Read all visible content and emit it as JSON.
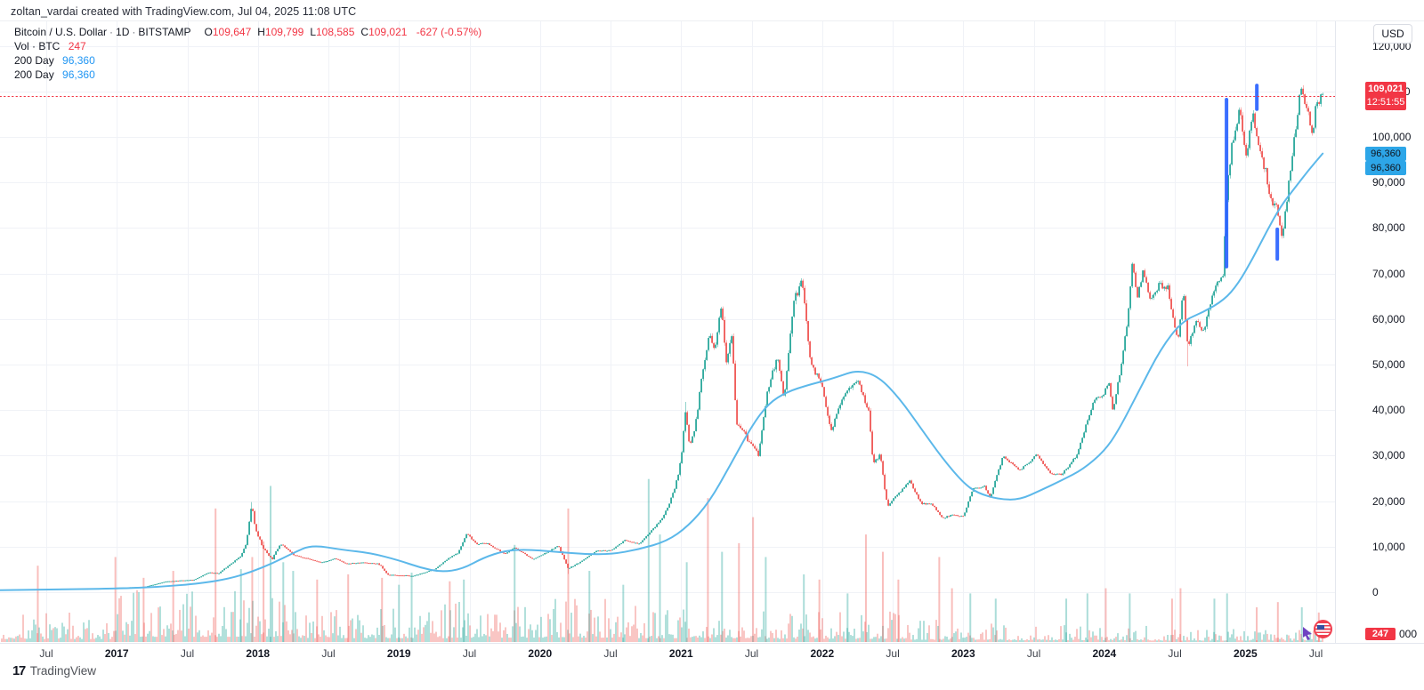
{
  "attribution": "zoltan_vardai created with TradingView.com, Jul 04, 2025 11:08 UTC",
  "legend": {
    "symbol": "Bitcoin / U.S. Dollar",
    "sep": "·",
    "interval": "1D",
    "exchange": "BITSTAMP",
    "o_label": "O",
    "o_value": "109,647",
    "h_label": "H",
    "h_value": "109,799",
    "l_label": "L",
    "l_value": "108,585",
    "c_label": "C",
    "c_value": "109,021",
    "change": "-627 (-0.57%)",
    "vol_label": "Vol · BTC",
    "vol_value": "247",
    "ma_rows": [
      {
        "label": "200 Day",
        "value": "96,360"
      },
      {
        "label": "200 Day",
        "value": "96,360"
      }
    ]
  },
  "price_axis": {
    "currency": "USD",
    "labels": [
      {
        "p": 120000,
        "text": "120,000"
      },
      {
        "p": 110000,
        "text": "110,000"
      },
      {
        "p": 100000,
        "text": "100,000"
      },
      {
        "p": 90000,
        "text": "90,000"
      },
      {
        "p": 80000,
        "text": "80,000"
      },
      {
        "p": 70000,
        "text": "70,000"
      },
      {
        "p": 60000,
        "text": "60,000"
      },
      {
        "p": 50000,
        "text": "50,000"
      },
      {
        "p": 40000,
        "text": "40,000"
      },
      {
        "p": 30000,
        "text": "30,000"
      },
      {
        "p": 20000,
        "text": "20,000"
      },
      {
        "p": 10000,
        "text": "10,000"
      },
      {
        "p": 0,
        "text": "0"
      }
    ],
    "last_price_badge": {
      "text": "109,021",
      "countdown": "12:51:55"
    },
    "ma_badges": [
      {
        "value": "96,360"
      },
      {
        "value": "96,360"
      }
    ],
    "volume_badge": {
      "text": "247",
      "suffix": "000"
    }
  },
  "time_axis": {
    "labels": [
      {
        "t": 2016.5,
        "text": "Jul",
        "major": false
      },
      {
        "t": 2017.0,
        "text": "2017",
        "major": true
      },
      {
        "t": 2017.5,
        "text": "Jul",
        "major": false
      },
      {
        "t": 2018.0,
        "text": "2018",
        "major": true
      },
      {
        "t": 2018.5,
        "text": "Jul",
        "major": false
      },
      {
        "t": 2019.0,
        "text": "2019",
        "major": true
      },
      {
        "t": 2019.5,
        "text": "Jul",
        "major": false
      },
      {
        "t": 2020.0,
        "text": "2020",
        "major": true
      },
      {
        "t": 2020.5,
        "text": "Jul",
        "major": false
      },
      {
        "t": 2021.0,
        "text": "2021",
        "major": true
      },
      {
        "t": 2021.5,
        "text": "Jul",
        "major": false
      },
      {
        "t": 2022.0,
        "text": "2022",
        "major": true
      },
      {
        "t": 2022.5,
        "text": "Jul",
        "major": false
      },
      {
        "t": 2023.0,
        "text": "2023",
        "major": true
      },
      {
        "t": 2023.5,
        "text": "Jul",
        "major": false
      },
      {
        "t": 2024.0,
        "text": "2024",
        "major": true
      },
      {
        "t": 2024.5,
        "text": "Jul",
        "major": false
      },
      {
        "t": 2025.0,
        "text": "2025",
        "major": true
      },
      {
        "t": 2025.5,
        "text": "Jul",
        "major": false
      }
    ]
  },
  "footer": {
    "logo_glyph": "17",
    "logo_text": "TradingView"
  },
  "colors": {
    "up": "#26a69a",
    "down": "#ef5350",
    "up_wick": "rgba(38,166,154,0.5)",
    "down_wick": "rgba(239,83,80,0.42)",
    "vol_up": "rgba(38,166,154,0.5)",
    "vol_down": "rgba(239,83,80,0.48)",
    "ma_line": "#5cb8ea",
    "accent_red": "#f23645",
    "badge_blue": "#2da6e8",
    "annotation_blue": "#2962ff",
    "grid": "#f0f2f7",
    "axis_text": "#131722"
  },
  "chart_data": {
    "type": "candlestick",
    "title": "Bitcoin / U.S. Dollar",
    "exchange": "BITSTAMP",
    "interval": "1D",
    "ohlc": {
      "open": 109647,
      "high": 109799,
      "low": 108585,
      "close": 109021
    },
    "change": -627,
    "change_pct": -0.57,
    "last_price": 109021,
    "ma200_value": 96360,
    "grid": true,
    "xlim": [
      2016.172,
      2025.635
    ],
    "ylim": [
      -11133,
      130078
    ],
    "series_end_t": 2025.548,
    "price_trend": [
      [
        2016.17,
        500
      ],
      [
        2016.5,
        660
      ],
      [
        2016.75,
        720
      ],
      [
        2017.0,
        990
      ],
      [
        2017.2,
        1190
      ],
      [
        2017.35,
        2350
      ],
      [
        2017.45,
        2550
      ],
      [
        2017.55,
        2720
      ],
      [
        2017.65,
        4350
      ],
      [
        2017.72,
        4100
      ],
      [
        2017.8,
        6100
      ],
      [
        2017.88,
        7900
      ],
      [
        2017.92,
        11000
      ],
      [
        2017.955,
        19500
      ],
      [
        2017.98,
        14300
      ],
      [
        2018.03,
        10000
      ],
      [
        2018.1,
        7200
      ],
      [
        2018.16,
        10800
      ],
      [
        2018.25,
        8200
      ],
      [
        2018.35,
        7400
      ],
      [
        2018.45,
        6500
      ],
      [
        2018.55,
        7400
      ],
      [
        2018.62,
        6300
      ],
      [
        2018.75,
        6500
      ],
      [
        2018.85,
        6300
      ],
      [
        2018.875,
        5600
      ],
      [
        2018.92,
        3800
      ],
      [
        2019.0,
        3750
      ],
      [
        2019.1,
        3550
      ],
      [
        2019.25,
        5000
      ],
      [
        2019.35,
        7400
      ],
      [
        2019.42,
        8700
      ],
      [
        2019.48,
        12900
      ],
      [
        2019.55,
        10600
      ],
      [
        2019.62,
        10800
      ],
      [
        2019.75,
        8400
      ],
      [
        2019.82,
        9800
      ],
      [
        2019.95,
        7200
      ],
      [
        2020.05,
        8800
      ],
      [
        2020.13,
        10200
      ],
      [
        2020.2,
        5200
      ],
      [
        2020.3,
        6900
      ],
      [
        2020.4,
        9100
      ],
      [
        2020.5,
        9150
      ],
      [
        2020.6,
        11400
      ],
      [
        2020.7,
        10600
      ],
      [
        2020.78,
        13200
      ],
      [
        2020.85,
        15600
      ],
      [
        2020.9,
        18300
      ],
      [
        2020.96,
        23400
      ],
      [
        2021.0,
        29200
      ],
      [
        2021.03,
        39500
      ],
      [
        2021.06,
        32500
      ],
      [
        2021.1,
        36500
      ],
      [
        2021.15,
        48000
      ],
      [
        2021.2,
        56500
      ],
      [
        2021.24,
        52500
      ],
      [
        2021.285,
        64000
      ],
      [
        2021.32,
        51000
      ],
      [
        2021.36,
        57500
      ],
      [
        2021.39,
        37500
      ],
      [
        2021.43,
        36000
      ],
      [
        2021.47,
        33500
      ],
      [
        2021.51,
        32000
      ],
      [
        2021.55,
        30200
      ],
      [
        2021.62,
        45500
      ],
      [
        2021.68,
        51500
      ],
      [
        2021.73,
        42500
      ],
      [
        2021.8,
        64500
      ],
      [
        2021.86,
        68000
      ],
      [
        2021.92,
        49500
      ],
      [
        2021.98,
        47500
      ],
      [
        2022.06,
        35500
      ],
      [
        2022.15,
        43000
      ],
      [
        2022.24,
        47000
      ],
      [
        2022.33,
        39500
      ],
      [
        2022.36,
        28500
      ],
      [
        2022.41,
        30200
      ],
      [
        2022.46,
        19000
      ],
      [
        2022.54,
        21800
      ],
      [
        2022.62,
        24300
      ],
      [
        2022.7,
        19600
      ],
      [
        2022.78,
        19300
      ],
      [
        2022.85,
        16200
      ],
      [
        2022.92,
        17000
      ],
      [
        2023.0,
        16700
      ],
      [
        2023.07,
        22800
      ],
      [
        2023.15,
        23300
      ],
      [
        2023.19,
        20700
      ],
      [
        2023.28,
        29800
      ],
      [
        2023.4,
        26900
      ],
      [
        2023.47,
        28400
      ],
      [
        2023.52,
        30300
      ],
      [
        2023.62,
        26100
      ],
      [
        2023.7,
        26000
      ],
      [
        2023.8,
        29900
      ],
      [
        2023.85,
        34800
      ],
      [
        2023.92,
        41800
      ],
      [
        2024.0,
        43900
      ],
      [
        2024.03,
        46300
      ],
      [
        2024.06,
        39800
      ],
      [
        2024.13,
        51800
      ],
      [
        2024.17,
        61500
      ],
      [
        2024.2,
        72800
      ],
      [
        2024.23,
        64000
      ],
      [
        2024.27,
        70300
      ],
      [
        2024.33,
        64200
      ],
      [
        2024.38,
        67400
      ],
      [
        2024.45,
        66800
      ],
      [
        2024.52,
        55000
      ],
      [
        2024.56,
        66500
      ],
      [
        2024.59,
        54000
      ],
      [
        2024.65,
        59200
      ],
      [
        2024.7,
        57300
      ],
      [
        2024.75,
        63300
      ],
      [
        2024.8,
        68200
      ],
      [
        2024.84,
        69800
      ],
      [
        2024.87,
        89500
      ],
      [
        2024.9,
        97200
      ],
      [
        2024.96,
        106800
      ],
      [
        2025.0,
        94800
      ],
      [
        2025.05,
        105500
      ],
      [
        2025.1,
        96800
      ],
      [
        2025.15,
        91800
      ],
      [
        2025.17,
        86500
      ],
      [
        2025.22,
        84600
      ],
      [
        2025.26,
        77000
      ],
      [
        2025.33,
        96200
      ],
      [
        2025.39,
        110300
      ],
      [
        2025.44,
        105800
      ],
      [
        2025.47,
        99800
      ],
      [
        2025.5,
        106800
      ],
      [
        2025.548,
        109021
      ]
    ],
    "ma200": [
      [
        2016.17,
        430
      ],
      [
        2016.5,
        560
      ],
      [
        2017.0,
        790
      ],
      [
        2017.3,
        1150
      ],
      [
        2017.6,
        1950
      ],
      [
        2017.8,
        3000
      ],
      [
        2017.95,
        4400
      ],
      [
        2018.1,
        6300
      ],
      [
        2018.25,
        8600
      ],
      [
        2018.38,
        10400
      ],
      [
        2018.6,
        9300
      ],
      [
        2018.8,
        8600
      ],
      [
        2019.0,
        7000
      ],
      [
        2019.15,
        5400
      ],
      [
        2019.3,
        4400
      ],
      [
        2019.45,
        5100
      ],
      [
        2019.6,
        7600
      ],
      [
        2019.75,
        9100
      ],
      [
        2019.9,
        9400
      ],
      [
        2020.1,
        8900
      ],
      [
        2020.3,
        8400
      ],
      [
        2020.5,
        8300
      ],
      [
        2020.7,
        9400
      ],
      [
        2020.9,
        11200
      ],
      [
        2021.05,
        14500
      ],
      [
        2021.2,
        19800
      ],
      [
        2021.35,
        28000
      ],
      [
        2021.5,
        36500
      ],
      [
        2021.62,
        41500
      ],
      [
        2021.75,
        44000
      ],
      [
        2021.9,
        45500
      ],
      [
        2022.0,
        46300
      ],
      [
        2022.1,
        47200
      ],
      [
        2022.25,
        48800
      ],
      [
        2022.4,
        47400
      ],
      [
        2022.55,
        42500
      ],
      [
        2022.7,
        36000
      ],
      [
        2022.85,
        29500
      ],
      [
        2023.0,
        24000
      ],
      [
        2023.1,
        21800
      ],
      [
        2023.25,
        20400
      ],
      [
        2023.4,
        20300
      ],
      [
        2023.55,
        22400
      ],
      [
        2023.7,
        24600
      ],
      [
        2023.85,
        27000
      ],
      [
        2024.0,
        31000
      ],
      [
        2024.1,
        35500
      ],
      [
        2024.25,
        44500
      ],
      [
        2024.4,
        53500
      ],
      [
        2024.55,
        59500
      ],
      [
        2024.7,
        61500
      ],
      [
        2024.85,
        64200
      ],
      [
        2024.95,
        67800
      ],
      [
        2025.05,
        73200
      ],
      [
        2025.15,
        79200
      ],
      [
        2025.25,
        84800
      ],
      [
        2025.35,
        88800
      ],
      [
        2025.45,
        92800
      ],
      [
        2025.548,
        96360
      ]
    ],
    "volatility": [
      [
        2016.17,
        0.014
      ],
      [
        2017.4,
        0.03
      ],
      [
        2018.2,
        0.016
      ],
      [
        2018.85,
        0.03
      ],
      [
        2019.05,
        0.02
      ],
      [
        2019.6,
        0.018
      ],
      [
        2020.14,
        0.035
      ],
      [
        2020.28,
        0.015
      ],
      [
        2020.85,
        0.025
      ],
      [
        2021.0,
        0.028
      ],
      [
        2022.5,
        0.02
      ],
      [
        2022.75,
        0.014
      ],
      [
        2023.6,
        0.016
      ],
      [
        2024.3,
        0.018
      ],
      [
        2025.0,
        0.016
      ],
      [
        2025.55,
        0.016
      ]
    ],
    "volume_profile": [
      [
        2016.17,
        0.17
      ],
      [
        2017.0,
        0.3
      ],
      [
        2018.3,
        0.22
      ],
      [
        2019.4,
        0.25
      ],
      [
        2020.6,
        0.22
      ],
      [
        2021.6,
        0.18
      ],
      [
        2022.6,
        0.13
      ],
      [
        2023.3,
        0.1
      ],
      [
        2024.3,
        0.08
      ],
      [
        2025.55,
        0.07
      ]
    ],
    "volume_spikes": [
      [
        2016.44,
        0.44,
        "d"
      ],
      [
        2016.99,
        0.49,
        "d"
      ],
      [
        2017.19,
        0.37,
        "d"
      ],
      [
        2017.4,
        0.41,
        "d"
      ],
      [
        2017.7,
        0.77,
        "d"
      ],
      [
        2017.88,
        0.42,
        "u"
      ],
      [
        2017.96,
        0.49,
        "d"
      ],
      [
        2018.04,
        0.58,
        "d"
      ],
      [
        2018.09,
        0.9,
        "u"
      ],
      [
        2018.18,
        0.46,
        "u"
      ],
      [
        2018.25,
        0.41,
        "u"
      ],
      [
        2018.42,
        0.36,
        "d"
      ],
      [
        2018.64,
        0.39,
        "d"
      ],
      [
        2018.88,
        0.37,
        "d"
      ],
      [
        2019.0,
        0.33,
        "u"
      ],
      [
        2019.09,
        0.4,
        "u"
      ],
      [
        2019.36,
        0.35,
        "d"
      ],
      [
        2019.46,
        0.36,
        "u"
      ],
      [
        2019.82,
        0.56,
        "u"
      ],
      [
        2020.2,
        0.77,
        "d"
      ],
      [
        2020.35,
        0.41,
        "u"
      ],
      [
        2020.59,
        0.33,
        "u"
      ],
      [
        2020.77,
        0.94,
        "u"
      ],
      [
        2020.85,
        0.62,
        "u"
      ],
      [
        2021.04,
        0.46,
        "u"
      ],
      [
        2021.19,
        0.83,
        "d"
      ],
      [
        2021.29,
        0.52,
        "u"
      ],
      [
        2021.41,
        0.57,
        "d"
      ],
      [
        2021.51,
        0.72,
        "d"
      ],
      [
        2021.6,
        0.49,
        "u"
      ],
      [
        2021.87,
        0.39,
        "u"
      ],
      [
        2021.98,
        0.36,
        "d"
      ],
      [
        2022.18,
        0.28,
        "u"
      ],
      [
        2022.31,
        0.62,
        "d"
      ],
      [
        2022.43,
        0.52,
        "d"
      ],
      [
        2022.54,
        0.36,
        "d"
      ],
      [
        2022.83,
        0.49,
        "d"
      ],
      [
        2022.92,
        0.31,
        "d"
      ],
      [
        2023.05,
        0.28,
        "u"
      ],
      [
        2023.23,
        0.25,
        "u"
      ],
      [
        2023.73,
        0.25,
        "u"
      ],
      [
        2023.88,
        0.28,
        "u"
      ],
      [
        2024.01,
        0.31,
        "d"
      ],
      [
        2024.18,
        0.28,
        "u"
      ],
      [
        2024.48,
        0.25,
        "d"
      ],
      [
        2024.54,
        0.31,
        "d"
      ],
      [
        2024.78,
        0.25,
        "u"
      ],
      [
        2024.87,
        0.28,
        "u"
      ],
      [
        2025.08,
        0.2,
        "d"
      ],
      [
        2025.23,
        0.23,
        "d"
      ],
      [
        2025.4,
        0.2,
        "u"
      ],
      [
        2025.52,
        0.17,
        "d"
      ]
    ],
    "wick_events": [
      {
        "t": 2017.955,
        "high": 19800
      },
      {
        "t": 2020.2,
        "low": 4000
      },
      {
        "t": 2021.03,
        "high": 41800
      },
      {
        "t": 2024.59,
        "low": 49600
      }
    ],
    "vline_annotations": [
      {
        "t": 2024.866,
        "p_top": 108200,
        "p_bottom": 71500
      },
      {
        "t": 2025.081,
        "p_top": 111300,
        "p_bottom": 106100
      },
      {
        "t": 2025.226,
        "p_top": 79700,
        "p_bottom": 73200
      }
    ],
    "last_price_line": 109021
  }
}
